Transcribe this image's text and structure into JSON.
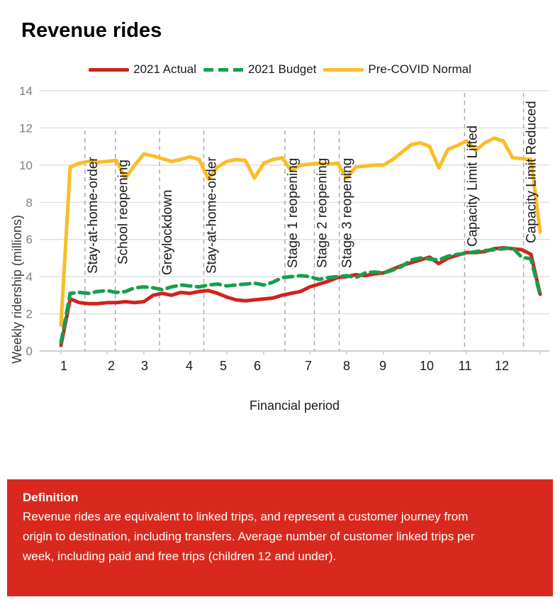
{
  "page": {
    "title": "Revenue rides"
  },
  "chart_data": {
    "type": "line",
    "title": "Revenue rides",
    "xlabel": "Financial period",
    "ylabel": "Weekly ridership (millions)",
    "ylim": [
      0,
      14
    ],
    "y_ticks": [
      0,
      2,
      4,
      6,
      8,
      10,
      12,
      14
    ],
    "x_tick_labels": [
      "1",
      "2",
      "3",
      "4",
      "5",
      "6",
      "7",
      "8",
      "9",
      "10",
      "11",
      "12"
    ],
    "x_is_weeks": true,
    "n_weeks": 53,
    "grid": "horizontal",
    "legend_position": "top",
    "series": [
      {
        "name": "2021 Actual",
        "color": "#CF231C",
        "style": "solid",
        "values": [
          0.3,
          2.8,
          2.6,
          2.55,
          2.55,
          2.6,
          2.6,
          2.65,
          2.6,
          2.65,
          3.0,
          3.1,
          3.0,
          3.15,
          3.1,
          3.2,
          3.25,
          3.1,
          2.9,
          2.75,
          2.7,
          2.75,
          2.8,
          2.85,
          3.0,
          3.1,
          3.2,
          3.45,
          3.6,
          3.75,
          3.95,
          4.0,
          4.1,
          4.05,
          4.15,
          4.2,
          4.4,
          4.6,
          4.75,
          4.9,
          5.05,
          4.7,
          5.0,
          5.15,
          5.3,
          5.3,
          5.35,
          5.5,
          5.55,
          5.5,
          5.45,
          5.2,
          3.05
        ]
      },
      {
        "name": "2021 Budget",
        "color": "#179E4B",
        "style": "dashed",
        "values": [
          0.45,
          3.1,
          3.15,
          3.1,
          3.2,
          3.25,
          3.15,
          3.2,
          3.4,
          3.45,
          3.4,
          3.3,
          3.45,
          3.55,
          3.5,
          3.45,
          3.55,
          3.6,
          3.5,
          3.55,
          3.6,
          3.65,
          3.55,
          3.7,
          3.95,
          4.0,
          4.05,
          4.0,
          3.85,
          3.95,
          4.0,
          4.05,
          3.95,
          4.2,
          4.25,
          4.2,
          4.35,
          4.55,
          4.9,
          5.0,
          4.95,
          4.9,
          5.1,
          5.2,
          5.25,
          5.35,
          5.4,
          5.45,
          5.5,
          5.55,
          5.05,
          4.95,
          3.0
        ]
      },
      {
        "name": "Pre-COVID Normal",
        "color": "#F9BE27",
        "style": "solid",
        "values": [
          1.4,
          9.9,
          10.1,
          10.2,
          10.15,
          10.2,
          10.25,
          9.3,
          10.0,
          10.6,
          10.5,
          10.35,
          10.2,
          10.3,
          10.45,
          10.3,
          9.25,
          9.9,
          10.2,
          10.3,
          10.25,
          9.3,
          10.1,
          10.3,
          10.4,
          9.7,
          10.0,
          10.05,
          10.1,
          10.05,
          10.1,
          9.3,
          9.9,
          9.95,
          10.0,
          10.0,
          10.3,
          10.7,
          11.1,
          11.2,
          11.0,
          9.85,
          10.85,
          11.05,
          11.3,
          10.8,
          11.2,
          11.45,
          11.3,
          10.4,
          10.35,
          10.3,
          6.4
        ]
      }
    ],
    "annotations": [
      {
        "label": "Stay-at-home-order",
        "week": 3.6
      },
      {
        "label": "School reopening",
        "week": 6.9
      },
      {
        "label": "Greylockdown",
        "week": 11.7
      },
      {
        "label": "Stay-at-home-order",
        "week": 16.5
      },
      {
        "label": "Stage 1 reopening",
        "week": 25.3
      },
      {
        "label": "Stage 2 reopening",
        "week": 28.5
      },
      {
        "label": "Stage 3 reopening",
        "week": 31.2
      },
      {
        "label": "Capacity Limit Lifted",
        "week": 44.8
      },
      {
        "label": "Capacity Limit Reduced",
        "week": 51.2
      }
    ],
    "annotation_line_color": "#ABABAB",
    "gridline_color": "#D9D9D9",
    "axis_line_color": "#BFBFBF",
    "y_tick_color": "#7F7F7F",
    "x_tick_color": "#1A1A1A"
  },
  "definition": {
    "heading": "Definition",
    "body": "Revenue rides are equivalent to linked trips, and represent a customer journey from origin to destination, including transfers. Average number of customer linked trips per week, including paid and free trips (children 12 and under).",
    "bg_color": "#D9291E",
    "text_color": "#FFFFFF"
  }
}
